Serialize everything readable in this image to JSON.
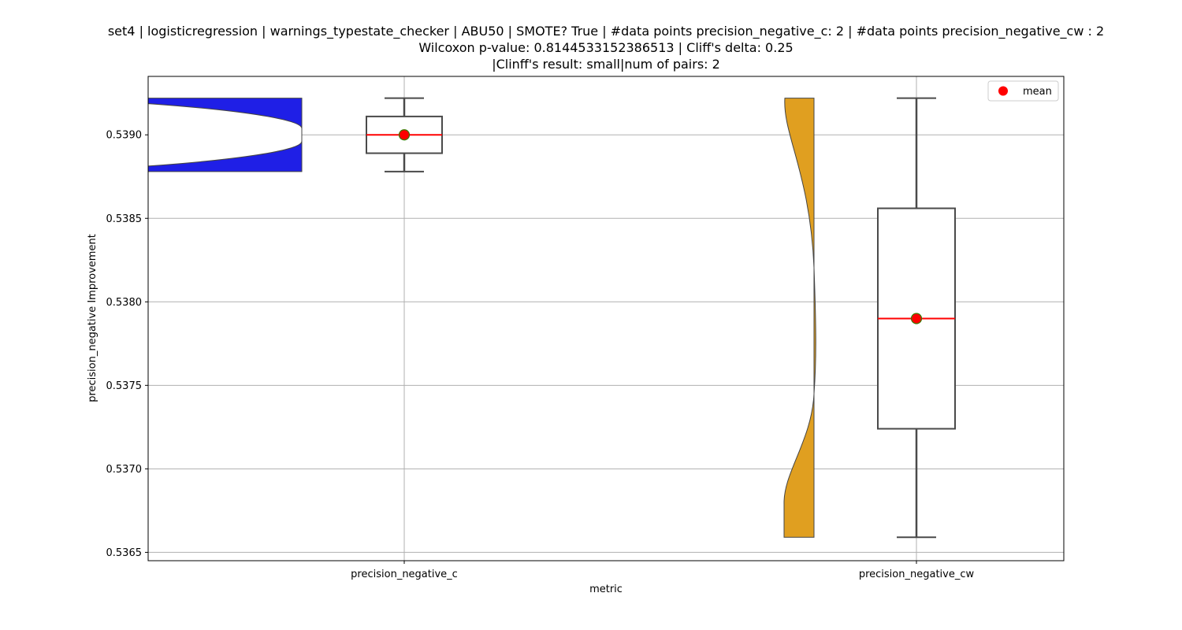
{
  "title_lines": [
    "set4 | logisticregression | warnings_typestate_checker | ABU50 | SMOTE? True | #data points precision_negative_c: 2 | #data points precision_negative_cw : 2",
    "Wilcoxon p-value: 0.8144533152386513 | Cliff's delta: 0.25",
    "|Clinff's result: small|num of pairs: 2"
  ],
  "chart_data": {
    "type": "violin+box",
    "title": "set4 | logisticregression | warnings_typestate_checker | ABU50 | SMOTE? True | #data points precision_negative_c: 2 | #data points precision_negative_cw : 2\nWilcoxon p-value: 0.8144533152386513 | Cliff's delta: 0.25\n|Clinff's result: small|num of pairs: 2",
    "xlabel": "metric",
    "ylabel": "precision_negative Improvement",
    "categories": [
      "precision_negative_c",
      "precision_negative_cw"
    ],
    "ylim": [
      0.53645,
      0.53935
    ],
    "yticks": [
      0.5365,
      0.537,
      0.5375,
      0.538,
      0.5385,
      0.539
    ],
    "ytick_labels": [
      "0.5365",
      "0.5370",
      "0.5375",
      "0.5380",
      "0.5385",
      "0.5390"
    ],
    "grid": true,
    "legend": {
      "position": "upper right",
      "entries": [
        "mean"
      ]
    },
    "series": [
      {
        "category": "precision_negative_c",
        "violin_color": "#1f1fe6",
        "min": 0.53878,
        "q1": 0.53889,
        "median": 0.539,
        "q3": 0.53911,
        "max": 0.53922,
        "mean": 0.539
      },
      {
        "category": "precision_negative_cw",
        "violin_color": "#e09f20",
        "min": 0.53659,
        "q1": 0.53724,
        "median": 0.5379,
        "q3": 0.53856,
        "max": 0.53922,
        "mean": 0.5379
      }
    ]
  }
}
